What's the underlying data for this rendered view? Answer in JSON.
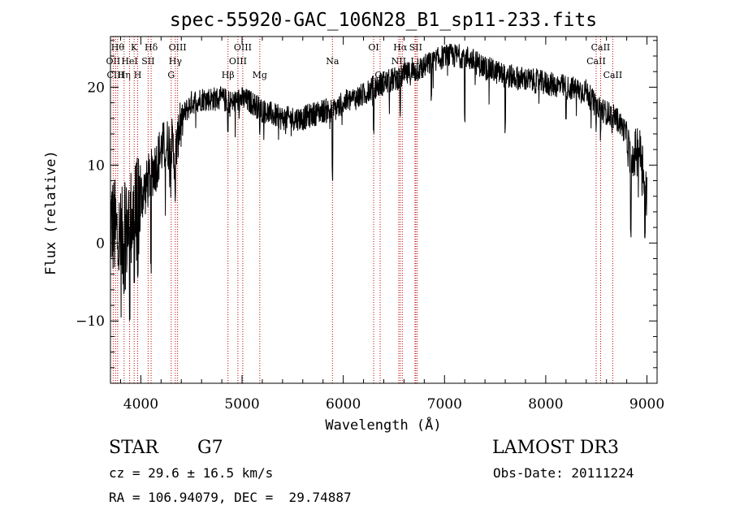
{
  "chart_data": {
    "type": "line",
    "title": "spec-55920-GAC_106N28_B1_sp11-233.fits",
    "xlabel": "Wavelength (Å)",
    "ylabel": "Flux (relative)",
    "xlim": [
      3700,
      9100
    ],
    "ylim": [
      -18,
      26.5
    ],
    "xticks": [
      4000,
      5000,
      6000,
      7000,
      8000,
      9000
    ],
    "yticks": [
      -10,
      0,
      10,
      20
    ],
    "tick_labels_x": [
      "4000",
      "5000",
      "6000",
      "7000",
      "8000",
      "9000"
    ],
    "tick_labels_y": [
      "−10",
      "0",
      "10",
      "20"
    ],
    "series": [
      {
        "name": "flux",
        "continuum_points": [
          [
            3700,
            3
          ],
          [
            3760,
            1
          ],
          [
            3800,
            0
          ],
          [
            3850,
            1
          ],
          [
            3900,
            3
          ],
          [
            3950,
            4
          ],
          [
            4000,
            6
          ],
          [
            4050,
            7
          ],
          [
            4100,
            9
          ],
          [
            4150,
            10
          ],
          [
            4200,
            12
          ],
          [
            4300,
            13
          ],
          [
            4340,
            11
          ],
          [
            4400,
            16
          ],
          [
            4500,
            18
          ],
          [
            4600,
            18.5
          ],
          [
            4700,
            18.5
          ],
          [
            4800,
            18.5
          ],
          [
            4900,
            18
          ],
          [
            5000,
            18.5
          ],
          [
            5100,
            18
          ],
          [
            5200,
            17
          ],
          [
            5400,
            16
          ],
          [
            5600,
            16
          ],
          [
            5800,
            17
          ],
          [
            5900,
            17
          ],
          [
            6000,
            18
          ],
          [
            6200,
            19
          ],
          [
            6300,
            20
          ],
          [
            6500,
            21
          ],
          [
            6700,
            22
          ],
          [
            7000,
            24
          ],
          [
            7200,
            24
          ],
          [
            7400,
            22.5
          ],
          [
            7600,
            21.5
          ],
          [
            7800,
            21
          ],
          [
            8000,
            20.5
          ],
          [
            8200,
            20
          ],
          [
            8400,
            19.5
          ],
          [
            8500,
            17.5
          ],
          [
            8700,
            16
          ],
          [
            8800,
            14
          ],
          [
            8850,
            9
          ],
          [
            8900,
            13
          ],
          [
            8950,
            11
          ],
          [
            9000,
            6
          ]
        ],
        "absorption_dips": [
          [
            3835,
            -7
          ],
          [
            3890,
            -10
          ],
          [
            3935,
            -6
          ],
          [
            3970,
            -5
          ],
          [
            4101,
            -4
          ],
          [
            4340,
            5
          ],
          [
            4861,
            13
          ],
          [
            5175,
            13
          ],
          [
            5893,
            8
          ],
          [
            6300,
            14
          ],
          [
            6563,
            16
          ],
          [
            6870,
            18
          ],
          [
            7200,
            15
          ],
          [
            7600,
            14
          ],
          [
            8200,
            15
          ],
          [
            8498,
            14
          ],
          [
            8542,
            13
          ],
          [
            8662,
            14
          ],
          [
            8840,
            0
          ],
          [
            8980,
            0
          ]
        ]
      }
    ],
    "line_markers": [
      {
        "wavelength": 3727,
        "label": "OII",
        "row": 1
      },
      {
        "wavelength": 3750,
        "label": "CIII",
        "row": 2
      },
      {
        "wavelength": 3771,
        "label": "Hθ",
        "row": 0
      },
      {
        "wavelength": 3835,
        "label": "Hη",
        "row": 2
      },
      {
        "wavelength": 3889,
        "label": "HeI",
        "row": 1
      },
      {
        "wavelength": 3934,
        "label": "K",
        "row": 0
      },
      {
        "wavelength": 3969,
        "label": "H",
        "row": 2
      },
      {
        "wavelength": 4072,
        "label": "SII",
        "row": 1
      },
      {
        "wavelength": 4102,
        "label": "Hδ",
        "row": 0
      },
      {
        "wavelength": 4300,
        "label": "G",
        "row": 2
      },
      {
        "wavelength": 4341,
        "label": "Hγ",
        "row": 1
      },
      {
        "wavelength": 4363,
        "label": "OIII",
        "row": 0
      },
      {
        "wavelength": 4861,
        "label": "Hβ",
        "row": 2
      },
      {
        "wavelength": 4959,
        "label": "OIII",
        "row": 1
      },
      {
        "wavelength": 5007,
        "label": "OIII",
        "row": 0
      },
      {
        "wavelength": 5175,
        "label": "Mg",
        "row": 2
      },
      {
        "wavelength": 5893,
        "label": "Na",
        "row": 1
      },
      {
        "wavelength": 6300,
        "label": "OI",
        "row": 0
      },
      {
        "wavelength": 6364,
        "label": "OI",
        "row": 2
      },
      {
        "wavelength": 6548,
        "label": "NII",
        "row": 1
      },
      {
        "wavelength": 6563,
        "label": "Hα",
        "row": 0
      },
      {
        "wavelength": 6583,
        "label": "NII",
        "row": 2
      },
      {
        "wavelength": 6708,
        "label": "Li",
        "row": 1
      },
      {
        "wavelength": 6716,
        "label": "SII",
        "row": 0
      },
      {
        "wavelength": 6731,
        "label": "SII",
        "row": 2
      },
      {
        "wavelength": 8498,
        "label": "CaII",
        "row": 1
      },
      {
        "wavelength": 8542,
        "label": "CaII",
        "row": 0
      },
      {
        "wavelength": 8662,
        "label": "CaII",
        "row": 2
      }
    ],
    "marker_color": "#c00000",
    "line_color": "#000000",
    "grid": false,
    "legend": "none"
  },
  "info": {
    "class": "STAR",
    "subclass": "G7",
    "survey": "LAMOST DR3",
    "redshift": "cz = 29.6 ± 16.5 km/s",
    "obs_date": "Obs-Date: 20111224",
    "coords": "RA = 106.94079, DEC =  29.74887"
  }
}
